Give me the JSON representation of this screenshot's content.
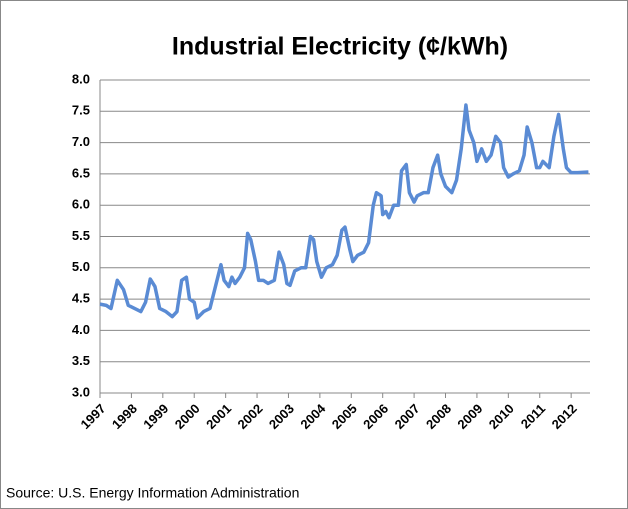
{
  "chart_data": {
    "type": "line",
    "title": "Industrial Electricity (¢/kWh)",
    "source": "Source: U.S. Energy Information  Administration",
    "xlim": [
      1997,
      2012.6
    ],
    "xticks": [
      1997,
      1998,
      1999,
      2000,
      2001,
      2002,
      2003,
      2004,
      2005,
      2006,
      2007,
      2008,
      2009,
      2010,
      2011,
      2012
    ],
    "ylim": [
      3,
      8
    ],
    "yticks": [
      {
        "value": 3,
        "label": "3.0"
      },
      3.5,
      {
        "value": 4,
        "label": "4.0"
      },
      4.5,
      {
        "value": 5,
        "label": "5.0"
      },
      5.5,
      {
        "value": 6,
        "label": "6.0"
      },
      6.5,
      {
        "value": 7,
        "label": "7.0"
      },
      7.5,
      {
        "value": 8,
        "label": "8.0"
      }
    ],
    "grid": true,
    "series": [
      {
        "color": "#5a8bd4",
        "x": [
          1997.0,
          1997.2,
          1997.35,
          1997.55,
          1997.75,
          1997.9,
          1998.1,
          1998.3,
          1998.45,
          1998.6,
          1998.75,
          1998.9,
          1999.1,
          1999.3,
          1999.45,
          1999.6,
          1999.75,
          1999.85,
          2000.0,
          2000.1,
          2000.3,
          2000.5,
          2000.7,
          2000.85,
          2000.95,
          2001.1,
          2001.2,
          2001.3,
          2001.45,
          2001.6,
          2001.7,
          2001.8,
          2001.95,
          2002.05,
          2002.2,
          2002.35,
          2002.55,
          2002.7,
          2002.85,
          2002.95,
          2003.05,
          2003.2,
          2003.4,
          2003.55,
          2003.7,
          2003.8,
          2003.9,
          2004.05,
          2004.2,
          2004.4,
          2004.55,
          2004.7,
          2004.8,
          2004.95,
          2005.05,
          2005.2,
          2005.4,
          2005.55,
          2005.7,
          2005.8,
          2005.95,
          2006.0,
          2006.1,
          2006.2,
          2006.35,
          2006.5,
          2006.6,
          2006.75,
          2006.85,
          2007.0,
          2007.1,
          2007.3,
          2007.45,
          2007.6,
          2007.75,
          2007.85,
          2008.0,
          2008.2,
          2008.35,
          2008.5,
          2008.65,
          2008.75,
          2008.9,
          2009.0,
          2009.15,
          2009.3,
          2009.45,
          2009.6,
          2009.75,
          2009.85,
          2010.0,
          2010.15,
          2010.35,
          2010.5,
          2010.6,
          2010.75,
          2010.9,
          2011.0,
          2011.1,
          2011.3,
          2011.45,
          2011.6,
          2011.75,
          2011.85,
          2012.0,
          2012.2,
          2012.55
        ],
        "values": [
          4.42,
          4.4,
          4.35,
          4.8,
          4.65,
          4.4,
          4.35,
          4.3,
          4.45,
          4.82,
          4.7,
          4.35,
          4.3,
          4.22,
          4.3,
          4.8,
          4.85,
          4.5,
          4.45,
          4.2,
          4.3,
          4.35,
          4.75,
          5.05,
          4.8,
          4.7,
          4.85,
          4.75,
          4.85,
          5.0,
          5.55,
          5.45,
          5.1,
          4.8,
          4.8,
          4.75,
          4.8,
          5.25,
          5.05,
          4.75,
          4.72,
          4.95,
          5.0,
          5.0,
          5.5,
          5.45,
          5.1,
          4.85,
          5.0,
          5.05,
          5.2,
          5.6,
          5.65,
          5.3,
          5.1,
          5.2,
          5.25,
          5.4,
          6.0,
          6.2,
          6.15,
          5.85,
          5.9,
          5.8,
          6.0,
          6.0,
          6.55,
          6.65,
          6.2,
          6.05,
          6.15,
          6.2,
          6.2,
          6.6,
          6.8,
          6.5,
          6.3,
          6.2,
          6.4,
          6.9,
          7.6,
          7.2,
          7.0,
          6.7,
          6.9,
          6.7,
          6.8,
          7.1,
          7.0,
          6.6,
          6.45,
          6.5,
          6.55,
          6.8,
          7.25,
          7.0,
          6.6,
          6.6,
          6.7,
          6.6,
          7.1,
          7.45,
          6.9,
          6.6,
          6.52,
          6.52,
          6.53
        ]
      }
    ]
  }
}
